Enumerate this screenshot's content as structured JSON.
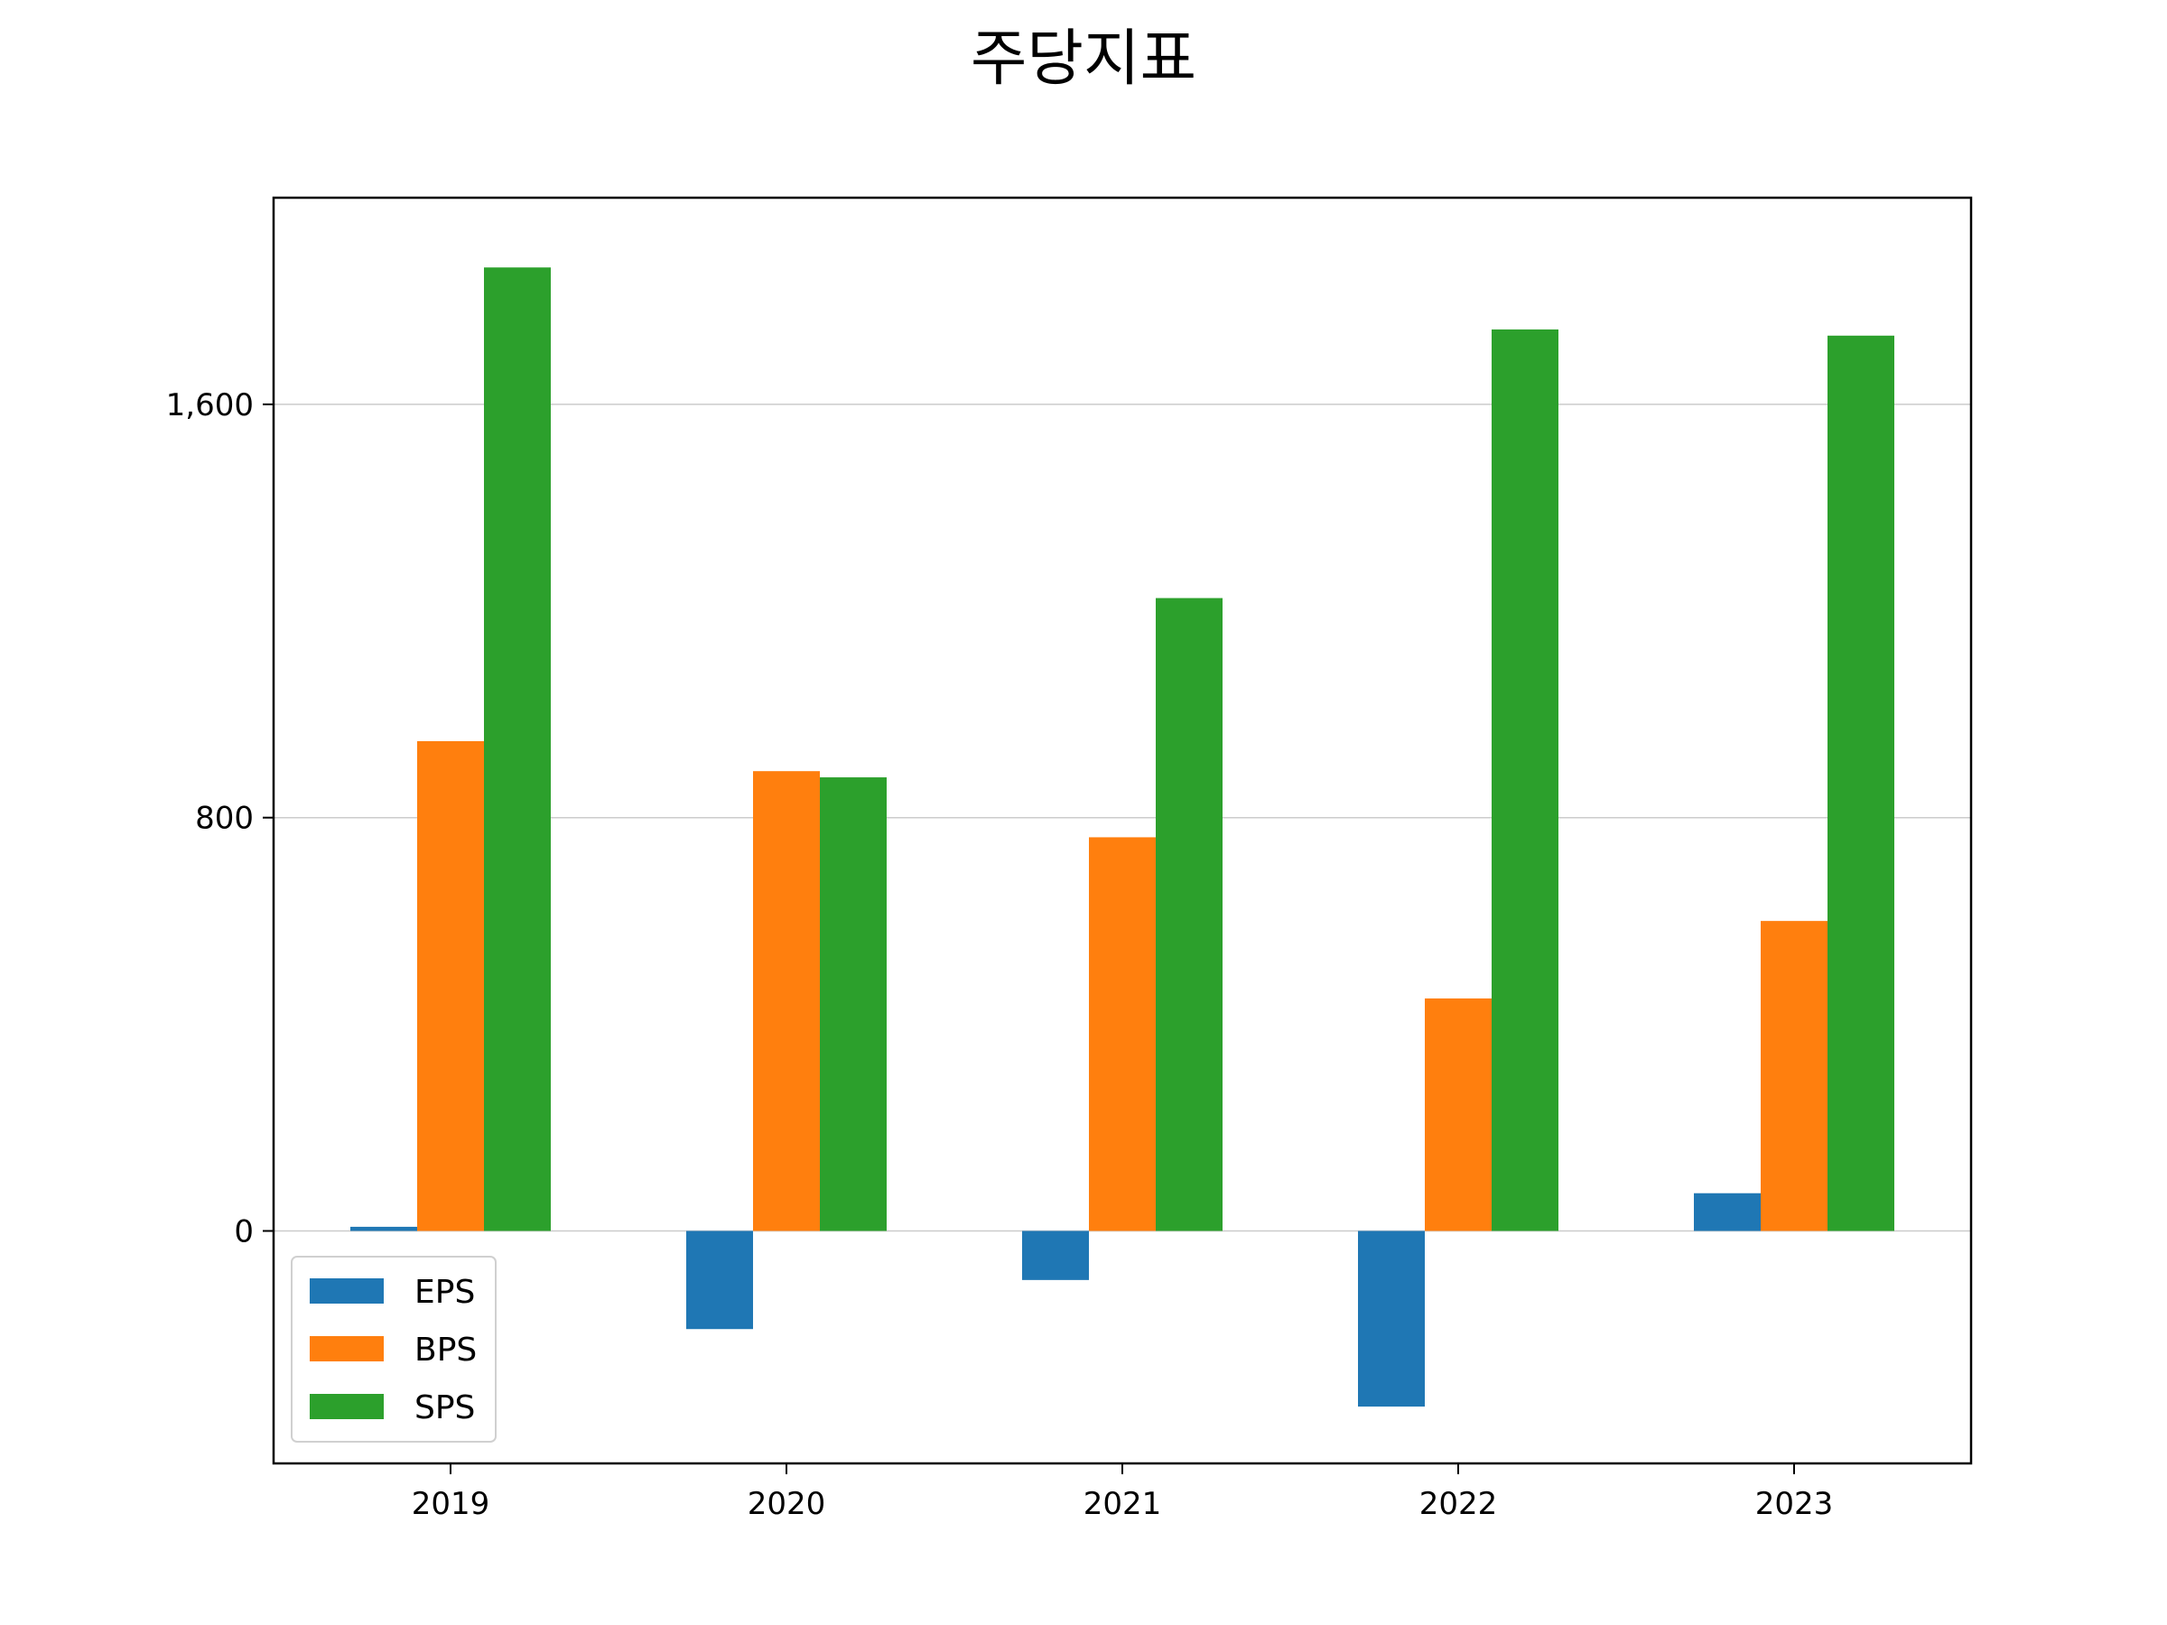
{
  "chart_data": {
    "type": "bar",
    "title": "주당지표",
    "xlabel": "",
    "ylabel": "",
    "categories": [
      "2019",
      "2020",
      "2021",
      "2022",
      "2023"
    ],
    "series": [
      {
        "name": "EPS",
        "color": "#1f77b4",
        "values": [
          8,
          -190,
          -95,
          -340,
          73
        ]
      },
      {
        "name": "BPS",
        "color": "#ff7f0e",
        "values": [
          948,
          890,
          762,
          450,
          600
        ]
      },
      {
        "name": "SPS",
        "color": "#2ca02c",
        "values": [
          1865,
          878,
          1225,
          1745,
          1733
        ]
      }
    ],
    "ylim": [
      -450,
      2000
    ],
    "yticks": [
      0,
      800,
      1600
    ],
    "ytick_labels": [
      "0",
      "800",
      "1,600"
    ],
    "grid": "y",
    "legend_position": "lower-left"
  }
}
